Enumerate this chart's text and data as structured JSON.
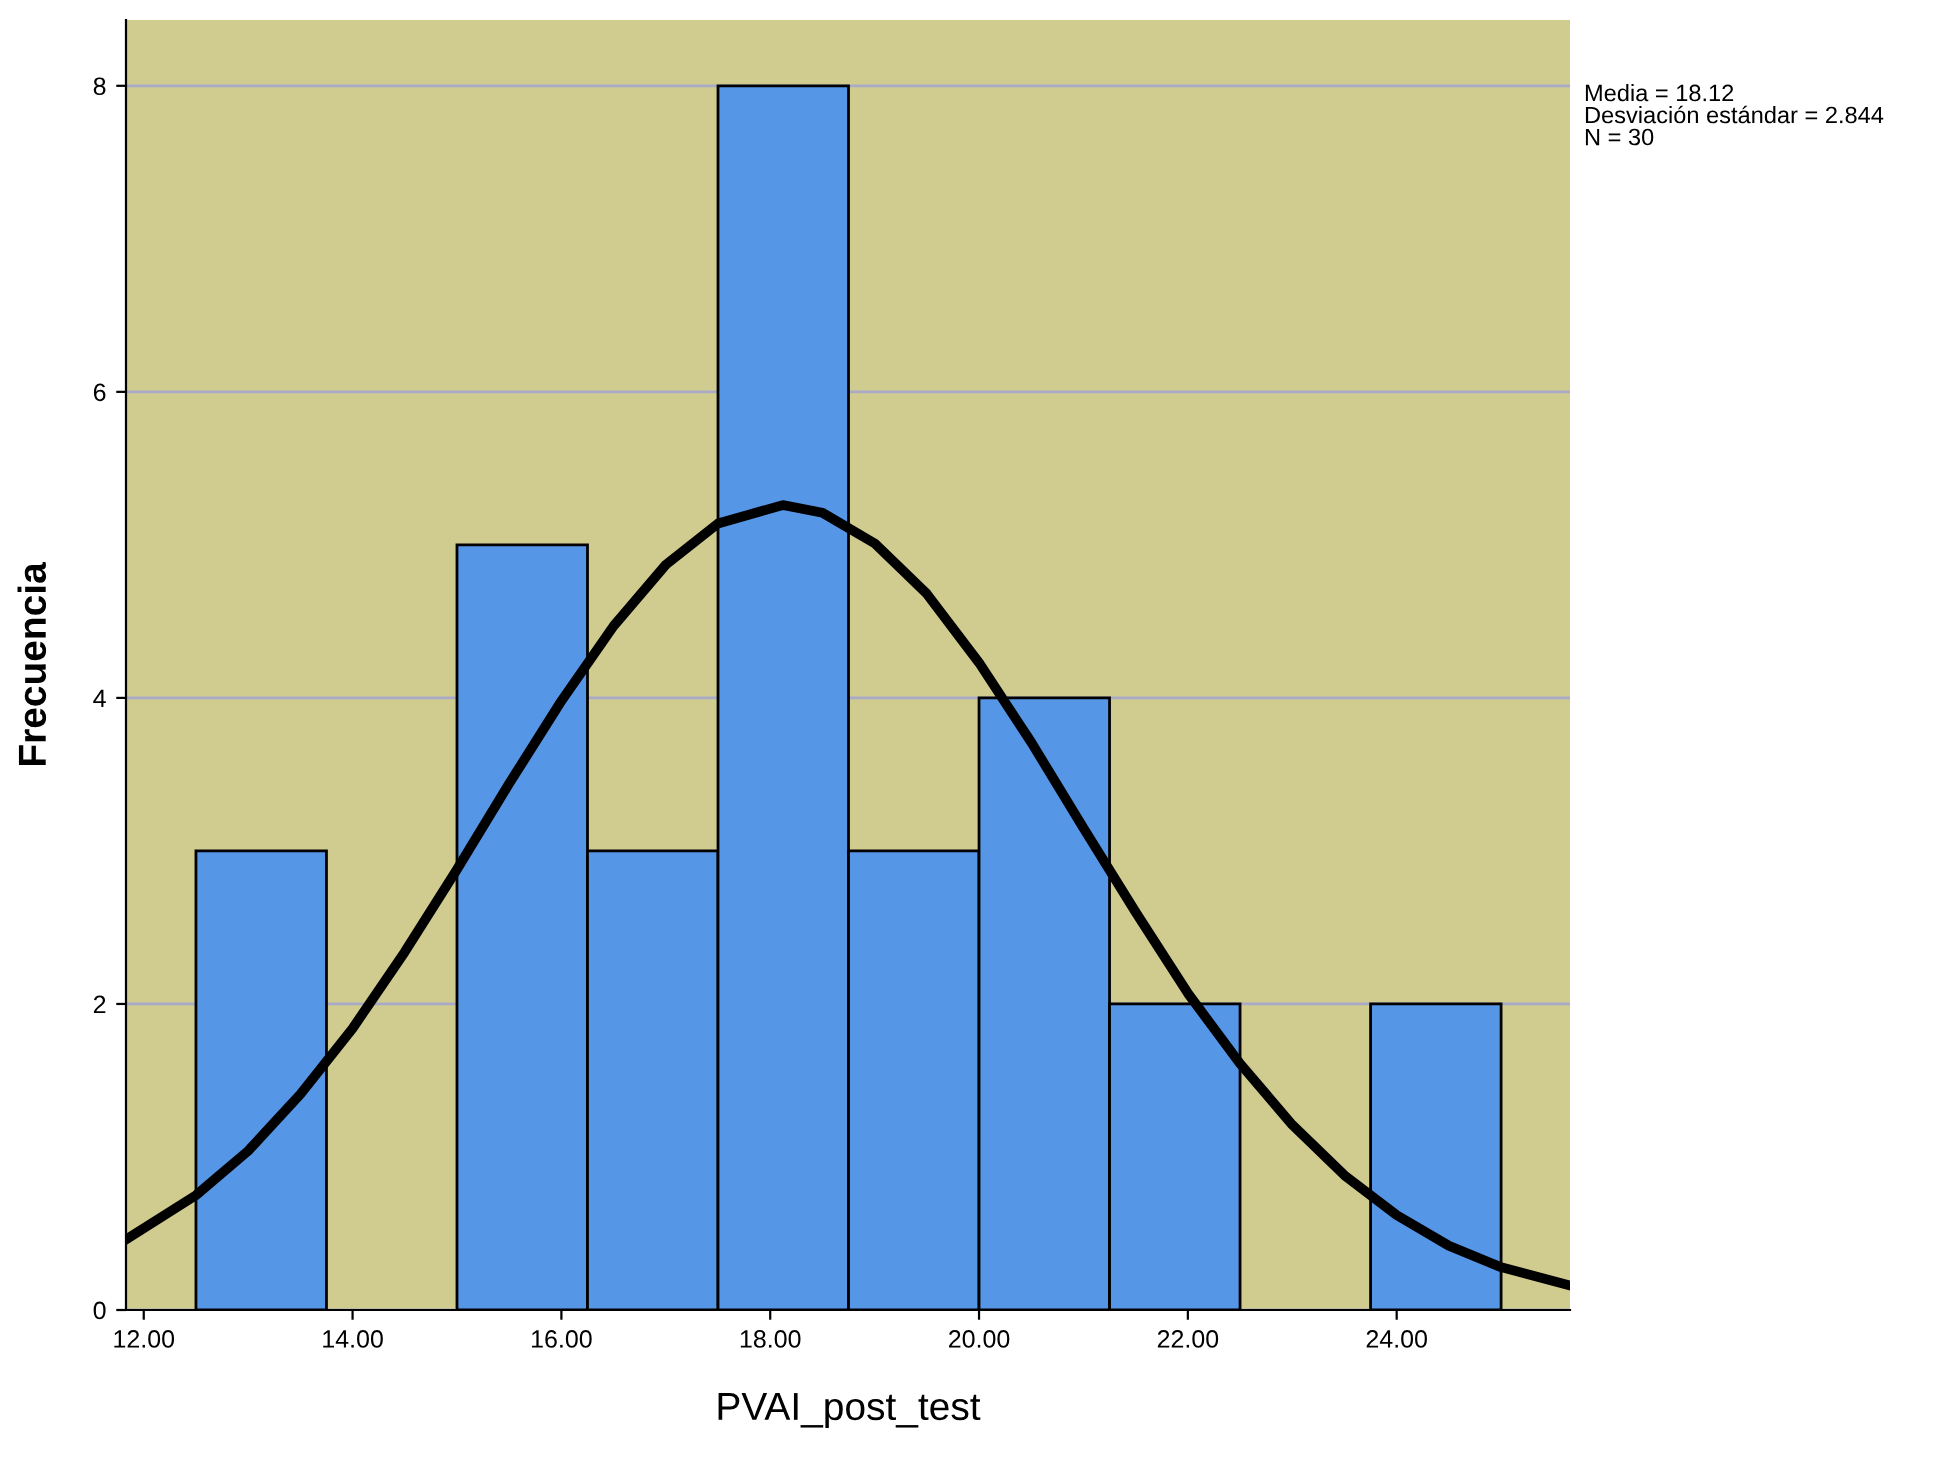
{
  "chart_data": {
    "type": "histogram",
    "xlabel": "PVAI_post_test",
    "ylabel": "Frecuencia",
    "annotations": [
      "Media = 18.12",
      "Desviación estándar = 2.844",
      "N = 30"
    ],
    "series": [
      {
        "bins": [
          12.5,
          13.75,
          15.0,
          16.25,
          17.5,
          18.75,
          20.0,
          21.25,
          22.5,
          23.75,
          25.0
        ],
        "values": [
          3,
          0,
          5,
          3,
          8,
          3,
          4,
          2,
          0,
          2
        ],
        "color": "#5596e6"
      },
      {
        "type": "line",
        "color": "#000000",
        "x": [
          11.83,
          12.5,
          13,
          13.5,
          14,
          14.5,
          15,
          15.5,
          16,
          16.5,
          17,
          17.5,
          18.12,
          18.5,
          19,
          19.5,
          20,
          20.5,
          21,
          21.5,
          22,
          22.5,
          23,
          23.5,
          24,
          24.5,
          25,
          25.66
        ],
        "values": [
          0.46,
          0.75,
          1.04,
          1.41,
          1.84,
          2.34,
          2.88,
          3.44,
          3.98,
          4.47,
          4.87,
          5.14,
          5.26,
          5.21,
          5.01,
          4.68,
          4.23,
          3.71,
          3.15,
          2.6,
          2.07,
          1.61,
          1.21,
          0.88,
          0.62,
          0.42,
          0.28,
          0.16
        ]
      }
    ],
    "xlim": [
      11.83,
      25.66
    ],
    "ylim": [
      0,
      8.43
    ],
    "xticks": [
      {
        "value": 12,
        "label": "12.00"
      },
      {
        "value": 14,
        "label": "14.00"
      },
      {
        "value": 16,
        "label": "16.00"
      },
      {
        "value": 18,
        "label": "18.00"
      },
      {
        "value": 20,
        "label": "20.00"
      },
      {
        "value": 22,
        "label": "22.00"
      },
      {
        "value": 24,
        "label": "24.00"
      }
    ],
    "yticks": [
      0,
      2,
      4,
      6,
      8
    ],
    "grid": "y",
    "marker": "none",
    "line_style": "solid"
  }
}
